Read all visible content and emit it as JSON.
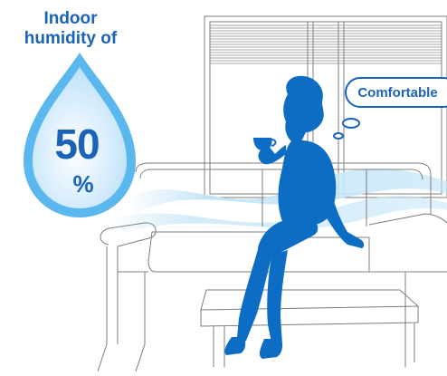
{
  "humidity": {
    "heading_line1": "Indoor",
    "heading_line2": "humidity of",
    "value": "50",
    "unit": "%"
  },
  "thought_bubble": {
    "text": "Comfortable"
  },
  "colors": {
    "accent": "#1a63b8",
    "silhouette": "#0d6cc4",
    "drop_light": "#cfe9fb",
    "line_art": "#7d7d7d"
  },
  "icons": {
    "drop": "water-drop-icon",
    "person": "woman-drinking-silhouette"
  }
}
